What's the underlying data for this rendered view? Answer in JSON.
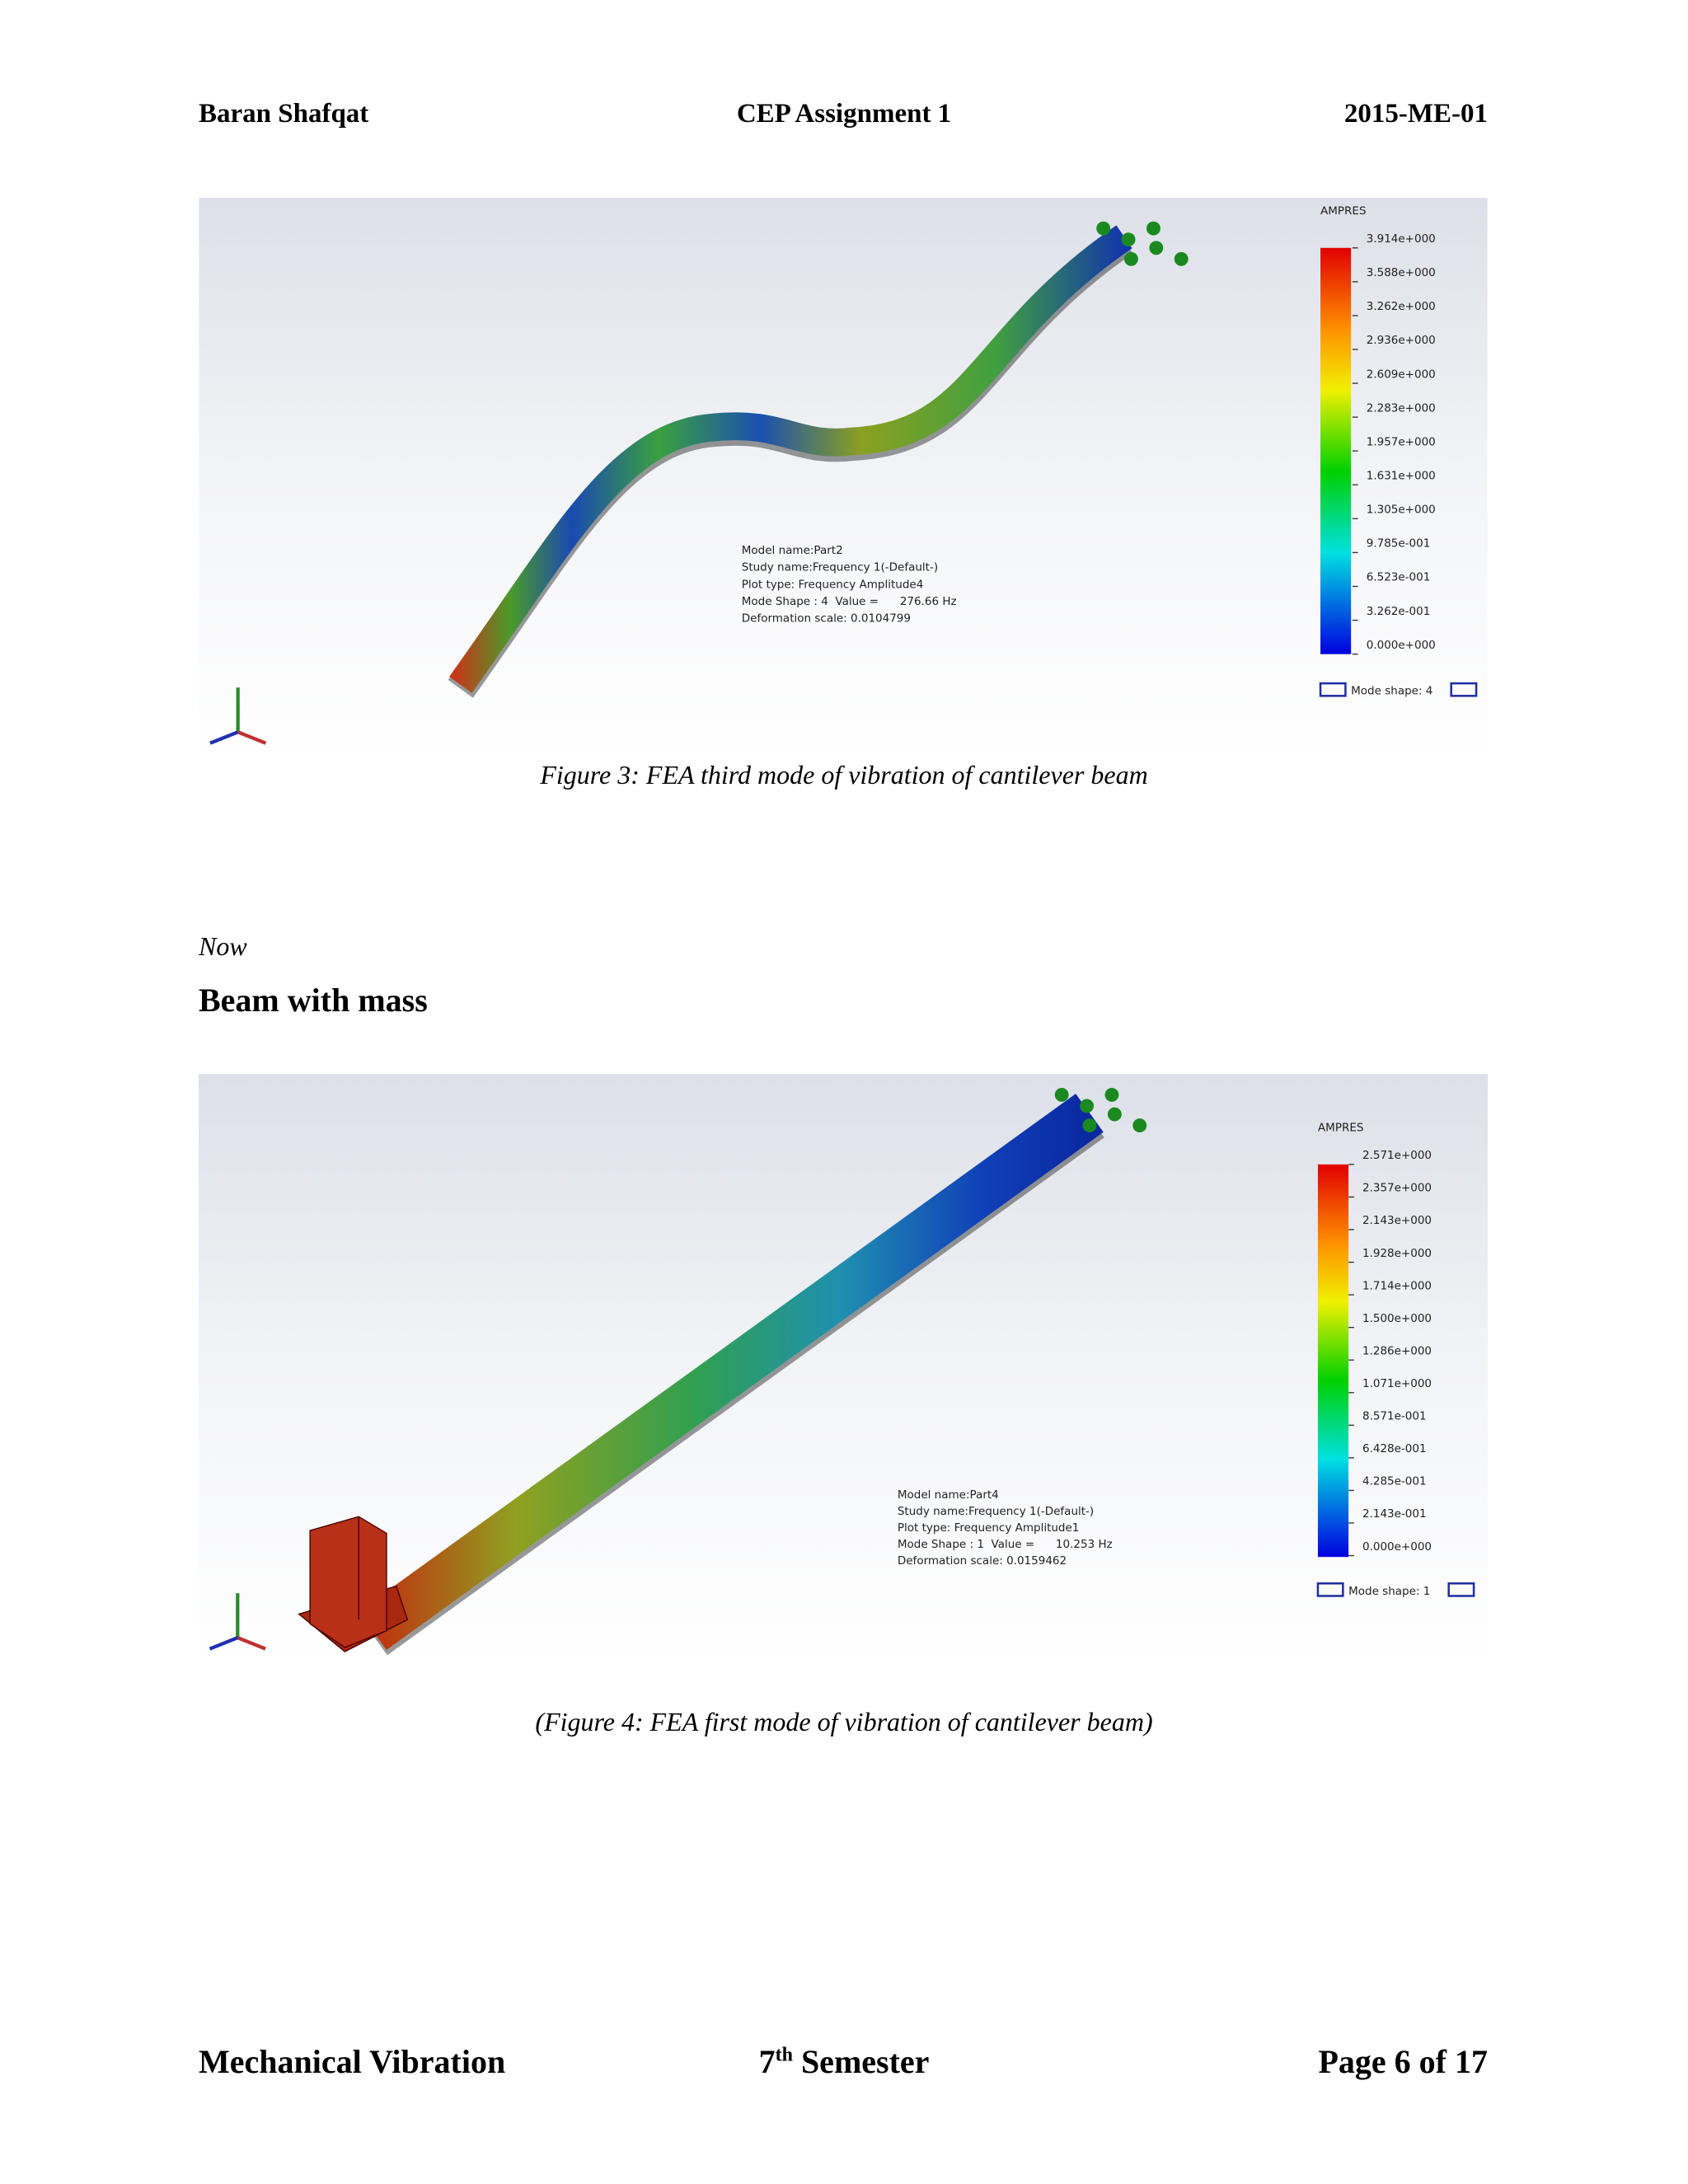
{
  "header": {
    "left": "Baran Shafqat",
    "center": "CEP Assignment 1",
    "right": "2015-ME-01"
  },
  "figures": [
    {
      "legend_title": "AMPRES",
      "legend_labels": [
        "3.914e+000",
        "3.588e+000",
        "3.262e+000",
        "2.936e+000",
        "2.609e+000",
        "2.283e+000",
        "1.957e+000",
        "1.631e+000",
        "1.305e+000",
        "9.785e-001",
        "6.523e-001",
        "3.262e-001",
        "0.000e+000"
      ],
      "info": [
        "Model name:Part2",
        "Study name:Frequency 1(-Default-)",
        "Plot type: Frequency Amplitude4",
        "Mode Shape : 4  Value =      276.66 Hz",
        "Deformation scale: 0.0104799"
      ],
      "mode_shape": "Mode shape: 4",
      "caption": "Figure 3: FEA third mode of vibration of cantilever beam"
    },
    {
      "legend_title": "AMPRES",
      "legend_labels": [
        "2.571e+000",
        "2.357e+000",
        "2.143e+000",
        "1.928e+000",
        "1.714e+000",
        "1.500e+000",
        "1.286e+000",
        "1.071e+000",
        "8.571e-001",
        "6.428e-001",
        "4.285e-001",
        "2.143e-001",
        "0.000e+000"
      ],
      "info": [
        "Model name:Part4",
        "Study name:Frequency 1(-Default-)",
        "Plot type: Frequency Amplitude1",
        "Mode Shape : 1  Value =      10.253 Hz",
        "Deformation scale: 0.0159462"
      ],
      "mode_shape": "Mode shape: 1",
      "caption": "(Figure 4: FEA first mode of vibration of cantilever beam)"
    }
  ],
  "body": {
    "note": "Now",
    "heading": "Beam with mass"
  },
  "footer": {
    "left": "Mechanical Vibration",
    "center_number": "7",
    "center_sup": "th",
    "center_text": " Semester",
    "right": "Page 6 of 17"
  }
}
